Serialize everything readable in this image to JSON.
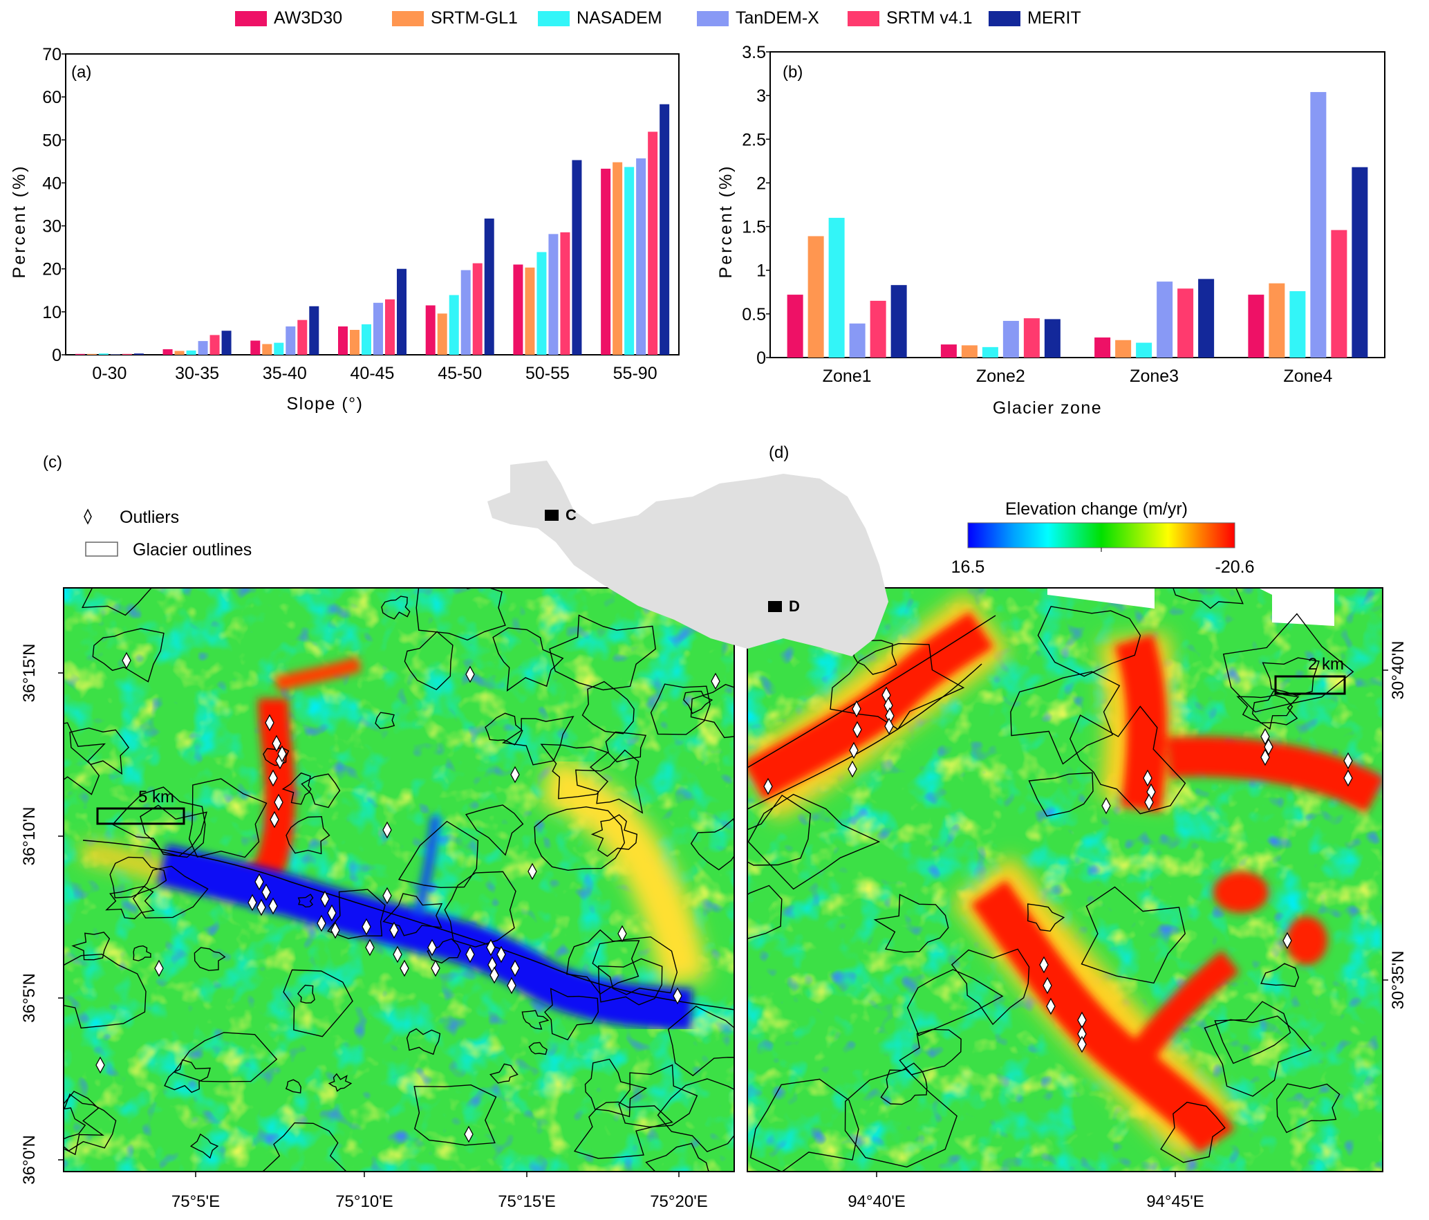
{
  "legend": [
    {
      "name": "AW3D30",
      "color": "#EE1166"
    },
    {
      "name": "SRTM-GL1",
      "color": "#FF9650"
    },
    {
      "name": "NASADEM",
      "color": "#33F5F8"
    },
    {
      "name": "TanDEM-X",
      "color": "#8899F5"
    },
    {
      "name": "SRTM v4.1",
      "color": "#FF3A6E"
    },
    {
      "name": "MERIT",
      "color": "#13289A"
    }
  ],
  "chart_data": [
    {
      "type": "bar",
      "panel": "(a)",
      "xlabel": "Slope (°)",
      "ylabel": "Percent (%)",
      "ylim": [
        0,
        70
      ],
      "yticks": [
        0,
        10,
        20,
        30,
        40,
        50,
        60,
        70
      ],
      "grid": false,
      "legend_placement": "top",
      "categories": [
        "0-30",
        "30-35",
        "35-40",
        "40-45",
        "45-50",
        "50-55",
        "55-90"
      ],
      "series": [
        {
          "name": "AW3D30",
          "values": [
            0.2,
            1.3,
            3.3,
            6.6,
            11.5,
            21.0,
            43.3
          ]
        },
        {
          "name": "SRTM-GL1",
          "values": [
            0.2,
            0.9,
            2.5,
            5.8,
            9.6,
            20.3,
            44.8
          ]
        },
        {
          "name": "NASADEM",
          "values": [
            0.3,
            1.0,
            2.8,
            7.1,
            13.9,
            23.9,
            43.7
          ]
        },
        {
          "name": "TanDEM-X",
          "values": [
            0.1,
            3.2,
            6.6,
            12.1,
            19.7,
            28.1,
            45.7
          ]
        },
        {
          "name": "SRTM v4.1",
          "values": [
            0.2,
            4.6,
            8.1,
            12.9,
            21.3,
            28.5,
            51.9
          ]
        },
        {
          "name": "MERIT",
          "values": [
            0.3,
            5.6,
            11.3,
            20.0,
            31.7,
            45.3,
            58.3
          ]
        }
      ]
    },
    {
      "type": "bar",
      "panel": "(b)",
      "xlabel": "Glacier zone",
      "ylabel": "Percent (%)",
      "ylim": [
        0,
        3.5
      ],
      "yticks": [
        0,
        0.5,
        1,
        1.5,
        2,
        2.5,
        3,
        3.5
      ],
      "grid": false,
      "legend_placement": "top",
      "categories": [
        "Zone1",
        "Zone2",
        "Zone3",
        "Zone4"
      ],
      "series": [
        {
          "name": "AW3D30",
          "values": [
            0.72,
            0.15,
            0.23,
            0.72
          ]
        },
        {
          "name": "SRTM-GL1",
          "values": [
            1.39,
            0.14,
            0.2,
            0.85
          ]
        },
        {
          "name": "NASADEM",
          "values": [
            1.6,
            0.12,
            0.17,
            0.76
          ]
        },
        {
          "name": "TanDEM-X",
          "values": [
            0.39,
            0.42,
            0.87,
            3.04
          ]
        },
        {
          "name": "SRTM v4.1",
          "values": [
            0.65,
            0.45,
            0.79,
            1.46
          ]
        },
        {
          "name": "MERIT",
          "values": [
            0.83,
            0.44,
            0.9,
            2.18
          ]
        }
      ]
    }
  ],
  "maps": {
    "c": {
      "panel": "(c)",
      "legend_outliers": "Outliers",
      "legend_outlines": "Glacier outlines",
      "scale_bar": "5 km",
      "lat_labels": [
        "36°15'N",
        "36°10'N",
        "36°5'N",
        "36°0'N"
      ],
      "lon_labels": [
        "75°5'E",
        "75°10'E",
        "75°15'E",
        "75°20'E"
      ]
    },
    "d": {
      "panel": "(d)",
      "scale_bar": "2 km",
      "lat_labels": [
        "30°40'N",
        "30°35'N"
      ],
      "lon_labels": [
        "94°40'E",
        "94°45'E"
      ]
    },
    "inset": {
      "marker_c": "C",
      "marker_d": "D",
      "fill": "#E0E0E0"
    },
    "colorbar": {
      "title": "Elevation change (m/yr)",
      "min_label": "16.5",
      "max_label": "-20.6",
      "colors": [
        "#0000FF",
        "#00A0FF",
        "#00FFFF",
        "#00E000",
        "#FFFF00",
        "#FF8000",
        "#FF0000"
      ]
    }
  }
}
